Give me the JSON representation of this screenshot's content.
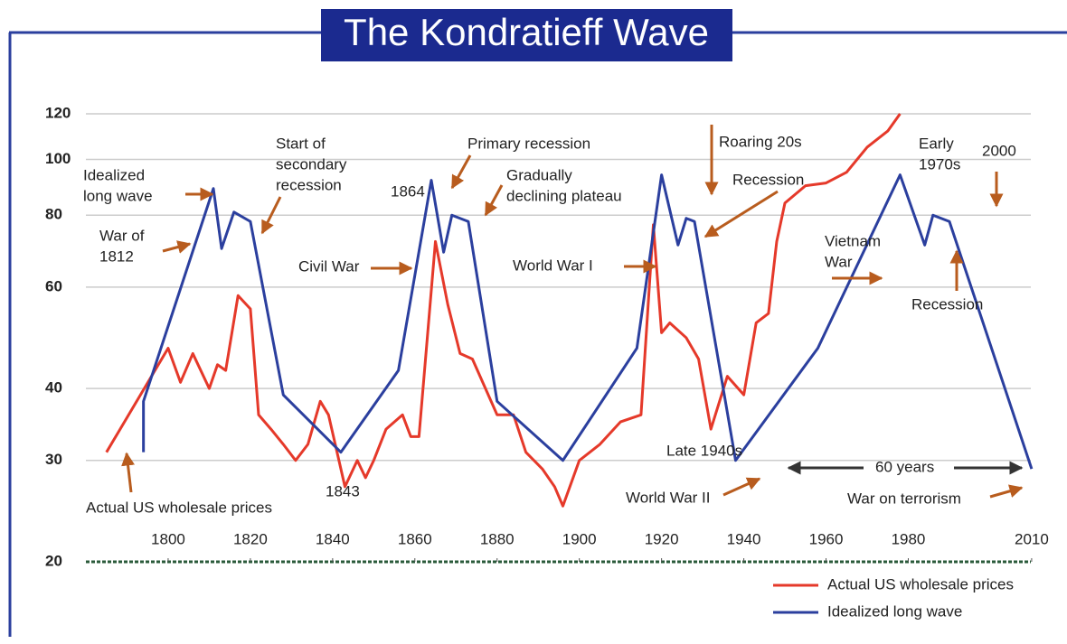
{
  "chart_data": {
    "type": "line",
    "title": "The Kondratieff Wave",
    "log_scale": true,
    "grid": true,
    "legend": "lower right",
    "xlim": [
      1780,
      2012
    ],
    "xticks": [
      1800,
      1820,
      1840,
      1860,
      1880,
      1900,
      1920,
      1940,
      1960,
      1980,
      2010
    ],
    "ylim": [
      20,
      120
    ],
    "yticks": [
      20,
      30,
      40,
      60,
      80,
      100,
      120
    ],
    "series": [
      {
        "name": "Actual US wholesale prices",
        "color": "#e5392a",
        "x": [
          1785,
          1800,
          1803,
          1806,
          1810,
          1812,
          1814,
          1817,
          1820,
          1822,
          1825,
          1828,
          1831,
          1834,
          1837,
          1839,
          1843,
          1846,
          1848,
          1850,
          1853,
          1857,
          1859,
          1861,
          1865,
          1868,
          1871,
          1874,
          1880,
          1884,
          1887,
          1891,
          1894,
          1896,
          1900,
          1905,
          1910,
          1915,
          1918,
          1920,
          1922,
          1926,
          1929,
          1932,
          1936,
          1940,
          1943,
          1946,
          1948,
          1950,
          1955,
          1960,
          1965,
          1970,
          1975,
          1978
        ],
        "values": [
          31,
          47,
          41,
          46,
          40,
          44,
          43,
          58,
          55,
          36,
          34,
          32,
          30,
          32,
          38,
          36,
          27,
          30,
          28,
          30,
          34,
          36,
          33,
          33,
          72,
          56,
          46,
          45,
          36,
          36,
          31,
          29,
          27,
          25,
          30,
          32,
          35,
          36,
          77,
          50,
          52,
          49,
          45,
          34,
          42,
          39,
          52,
          54,
          72,
          84,
          90,
          91,
          95,
          105,
          112,
          120
        ]
      },
      {
        "name": "Idealized long wave",
        "color": "#2b3f9e",
        "x": [
          1794,
          1794,
          1811,
          1813,
          1816,
          1820,
          1828,
          1842,
          1856,
          1864,
          1867,
          1869,
          1873,
          1880,
          1896,
          1914,
          1920,
          1924,
          1926,
          1928,
          1938,
          1958,
          1978,
          1984,
          1986,
          1990,
          2010
        ],
        "values": [
          31,
          38,
          89,
          70,
          81,
          78,
          39,
          31,
          43,
          92,
          69,
          80,
          78,
          38,
          30,
          47,
          94,
          71,
          79,
          78,
          30,
          47,
          94,
          71,
          80,
          78,
          29
        ]
      }
    ],
    "annotations": [
      [
        "Idealized",
        "long wave"
      ],
      [
        "War of",
        "1812"
      ],
      [
        "Start of",
        "secondary",
        "recession"
      ],
      [
        "Actual US wholesale prices"
      ],
      [
        "1843"
      ],
      [
        "Civil War"
      ],
      [
        "1864"
      ],
      [
        "Primary recession"
      ],
      [
        "Gradually",
        "declining plateau"
      ],
      [
        "World War I"
      ],
      [
        "Roaring 20s"
      ],
      [
        "Recession"
      ],
      [
        "Late 1940s"
      ],
      [
        "World War II"
      ],
      [
        "Vietnam",
        "War"
      ],
      [
        "Early",
        "1970s"
      ],
      [
        "2000"
      ],
      [
        "Recession"
      ],
      [
        "60 years"
      ],
      [
        "War on terrorism"
      ]
    ]
  }
}
